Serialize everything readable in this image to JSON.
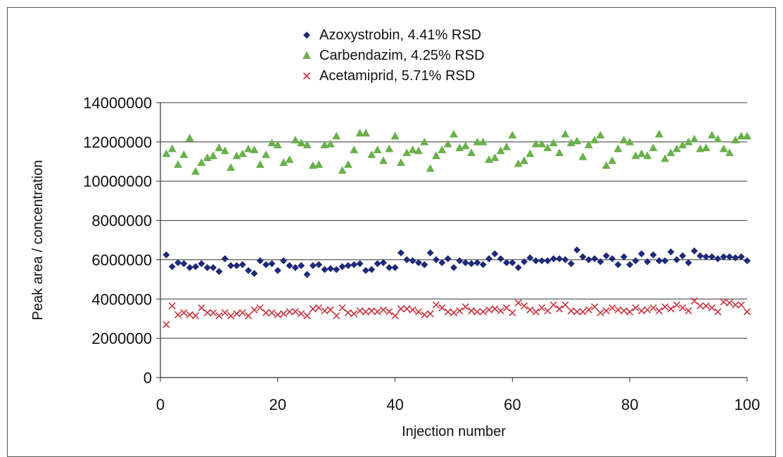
{
  "chart_data": {
    "type": "scatter",
    "title": "",
    "xlabel": "Injection number",
    "ylabel": "Peak area / concentration",
    "xlim": [
      0,
      100
    ],
    "ylim": [
      0,
      14000000
    ],
    "x_ticks": [
      "0",
      "20",
      "40",
      "60",
      "80",
      "100"
    ],
    "y_ticks": [
      "0",
      "2000000",
      "4000000",
      "6000000",
      "8000000",
      "10000000",
      "12000000",
      "14000000"
    ],
    "grid": "horizontal",
    "legend_position": "top-center",
    "series": [
      {
        "name": "Azoxystrobin, 4.41% RSD",
        "marker": "diamond",
        "color": "#1f2a78",
        "values": [
          6250000,
          5650000,
          5850000,
          5800000,
          5600000,
          5650000,
          5800000,
          5600000,
          5600000,
          5400000,
          6050000,
          5700000,
          5700000,
          5750000,
          5450000,
          5300000,
          5950000,
          5750000,
          5800000,
          5450000,
          5950000,
          5700000,
          5600000,
          5700000,
          5250000,
          5700000,
          5750000,
          5500000,
          5550000,
          5500000,
          5650000,
          5700000,
          5750000,
          5800000,
          5450000,
          5500000,
          5800000,
          5850000,
          5600000,
          5600000,
          6350000,
          6000000,
          5950000,
          5850000,
          5750000,
          6350000,
          6000000,
          5850000,
          6050000,
          5600000,
          5950000,
          5850000,
          5800000,
          5850000,
          5750000,
          6050000,
          6300000,
          6050000,
          5850000,
          5850000,
          5600000,
          5900000,
          6100000,
          5950000,
          5950000,
          5950000,
          6050000,
          6050000,
          6000000,
          5800000,
          6500000,
          6150000,
          6000000,
          6050000,
          5900000,
          6200000,
          6050000,
          5750000,
          6150000,
          5750000,
          5950000,
          6300000,
          5900000,
          6250000,
          5950000,
          5950000,
          6400000,
          6000000,
          6200000,
          5850000,
          6450000,
          6200000,
          6150000,
          6150000,
          6050000,
          6150000,
          6150000,
          6100000,
          6150000,
          5950000
        ]
      },
      {
        "name": "Carbendazim, 4.25% RSD",
        "marker": "triangle",
        "color": "#6ab04c",
        "values": [
          11400000,
          11650000,
          10850000,
          11350000,
          12200000,
          10500000,
          10950000,
          11200000,
          11300000,
          11700000,
          11550000,
          10700000,
          11300000,
          11400000,
          11650000,
          11600000,
          10850000,
          11350000,
          11950000,
          11850000,
          10950000,
          11100000,
          12100000,
          11950000,
          11850000,
          10800000,
          10850000,
          11850000,
          11900000,
          12300000,
          10550000,
          10850000,
          11600000,
          12450000,
          12450000,
          11350000,
          11600000,
          11050000,
          11650000,
          12300000,
          10950000,
          11450000,
          11600000,
          11550000,
          12000000,
          10650000,
          11300000,
          11600000,
          11900000,
          12400000,
          11700000,
          11800000,
          11450000,
          12000000,
          12000000,
          11100000,
          11200000,
          11550000,
          11750000,
          12350000,
          10900000,
          11050000,
          11400000,
          11900000,
          11900000,
          11700000,
          11950000,
          11450000,
          12400000,
          11950000,
          12050000,
          11250000,
          11850000,
          12100000,
          12350000,
          10800000,
          11050000,
          11650000,
          12100000,
          12000000,
          11300000,
          11400000,
          11300000,
          11700000,
          12400000,
          11150000,
          11450000,
          11650000,
          11850000,
          12000000,
          12150000,
          11650000,
          11700000,
          12350000,
          12150000,
          11650000,
          11450000,
          12100000,
          12300000,
          12300000
        ]
      },
      {
        "name": "Acetamiprid, 5.71% RSD",
        "marker": "x",
        "color": "#c8323c",
        "values": [
          2700000,
          3650000,
          3200000,
          3300000,
          3200000,
          3150000,
          3550000,
          3300000,
          3300000,
          3150000,
          3300000,
          3150000,
          3250000,
          3300000,
          3150000,
          3450000,
          3550000,
          3300000,
          3300000,
          3200000,
          3250000,
          3350000,
          3350000,
          3250000,
          3150000,
          3500000,
          3550000,
          3400000,
          3450000,
          3150000,
          3550000,
          3300000,
          3250000,
          3400000,
          3350000,
          3400000,
          3350000,
          3450000,
          3350000,
          3150000,
          3500000,
          3500000,
          3450000,
          3350000,
          3200000,
          3250000,
          3700000,
          3550000,
          3350000,
          3300000,
          3400000,
          3600000,
          3400000,
          3350000,
          3350000,
          3450000,
          3500000,
          3400000,
          3550000,
          3300000,
          3800000,
          3650000,
          3450000,
          3350000,
          3550000,
          3400000,
          3700000,
          3500000,
          3700000,
          3400000,
          3350000,
          3350000,
          3450000,
          3600000,
          3300000,
          3400000,
          3550000,
          3450000,
          3400000,
          3350000,
          3550000,
          3400000,
          3450000,
          3550000,
          3400000,
          3600000,
          3500000,
          3700000,
          3550000,
          3400000,
          3900000,
          3650000,
          3650000,
          3550000,
          3350000,
          3850000,
          3800000,
          3700000,
          3700000,
          3350000
        ]
      }
    ]
  }
}
